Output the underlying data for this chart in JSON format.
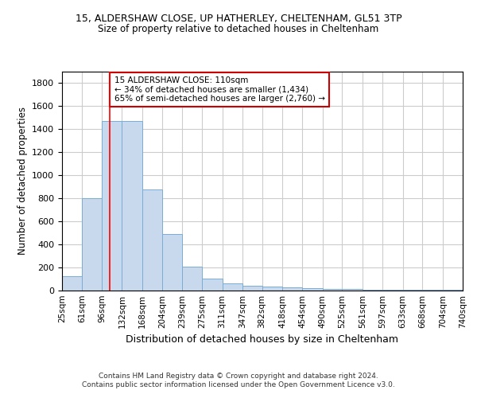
{
  "title1": "15, ALDERSHAW CLOSE, UP HATHERLEY, CHELTENHAM, GL51 3TP",
  "title2": "Size of property relative to detached houses in Cheltenham",
  "xlabel": "Distribution of detached houses by size in Cheltenham",
  "ylabel": "Number of detached properties",
  "footer1": "Contains HM Land Registry data © Crown copyright and database right 2024.",
  "footer2": "Contains public sector information licensed under the Open Government Licence v3.0.",
  "bin_edges": [
    25,
    61,
    96,
    132,
    168,
    204,
    239,
    275,
    311,
    347,
    382,
    418,
    454,
    490,
    525,
    561,
    597,
    633,
    668,
    704,
    740
  ],
  "bar_heights": [
    125,
    800,
    1475,
    1475,
    880,
    490,
    205,
    105,
    65,
    40,
    35,
    30,
    22,
    12,
    12,
    10,
    8,
    8,
    8,
    8
  ],
  "bar_color": "#c8d9ee",
  "bar_edge_color": "#7aadd4",
  "red_line_x": 110,
  "annotation_line1": "15 ALDERSHAW CLOSE: 110sqm",
  "annotation_line2": "← 34% of detached houses are smaller (1,434)",
  "annotation_line3": "65% of semi-detached houses are larger (2,760) →",
  "annotation_box_color": "#ffffff",
  "annotation_border_color": "#cc0000",
  "ylim": [
    0,
    1900
  ],
  "yticks": [
    0,
    200,
    400,
    600,
    800,
    1000,
    1200,
    1400,
    1600,
    1800
  ],
  "background_color": "#ffffff",
  "grid_color": "#cccccc"
}
